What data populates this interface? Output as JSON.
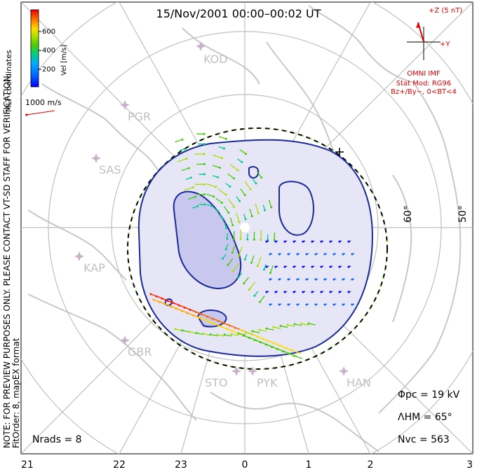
{
  "title": "15/Nov/2001  00:00–00:02  UT",
  "coords_label": "MLT coordinates",
  "colorbar": {
    "label": "Vel [m/s]",
    "ticks": [
      "600",
      "400",
      "200"
    ],
    "colors": [
      "#0000ff",
      "#0060ff",
      "#00aaff",
      "#00cc88",
      "#44cc00",
      "#aadd00",
      "#ffdd00",
      "#ffaa00",
      "#ff6600",
      "#ff2200",
      "#ee0000"
    ]
  },
  "scale_vector": "1000 m/s",
  "imf": {
    "z_label": "+Z (5 nT)",
    "y_label": "+Y",
    "source": "OMNI IMF",
    "stat_mod": "Stat Mod: RG96",
    "condition": "Bz+/By−, 0<BT<4"
  },
  "note": "NOTE: FOR PREVIEW PURPOSES ONLY. PLEASE CONTACT VT-SD STAFF FOR VERIFICATION.",
  "fit_info": "FitOrder: 8,  mapEX format",
  "stations": [
    "KOD",
    "PGR",
    "SAS",
    "KAP",
    "GBR",
    "STO",
    "PYK",
    "HAN"
  ],
  "lat_labels": [
    "60°",
    "50°"
  ],
  "mlt_ticks": [
    "21",
    "22",
    "23",
    "0",
    "1",
    "2",
    "3"
  ],
  "stats": {
    "phi_pc": "Φpc = 19 kV",
    "lambda_hm": "ΛHM = 65°",
    "n_vc": "Nvc = 563",
    "n_rads": "Nrads = 8"
  },
  "colors": {
    "contour": "#1a2a9a",
    "grid": "#bfbfbf",
    "land": "#c8c8c8",
    "station": "#c9b0c9",
    "imf": "#dd0000",
    "hmb": "#000000"
  }
}
